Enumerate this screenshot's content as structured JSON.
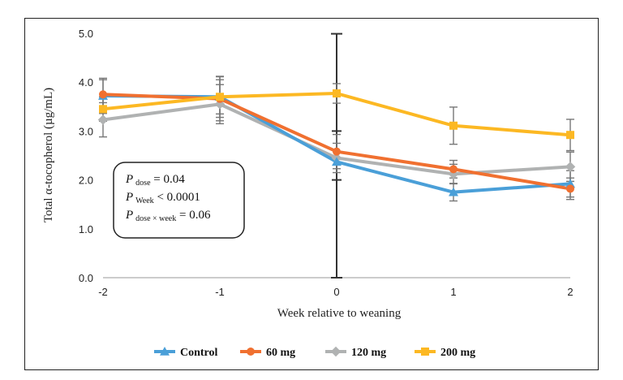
{
  "chart_data": {
    "type": "line",
    "xlabel": "Week relative to weaning",
    "ylabel": "Total α-tocopherol (µg/mL)",
    "x": [
      -2,
      -1,
      0,
      1,
      2
    ],
    "x_ticks": [
      "-2",
      "-1",
      "0",
      "1",
      "2"
    ],
    "ylim": [
      0,
      5
    ],
    "y_ticks": [
      "0.0",
      "1.0",
      "2.0",
      "3.0",
      "4.0",
      "5.0"
    ],
    "grid": false,
    "legend_position": "bottom",
    "series": [
      {
        "name": "Control",
        "color": "#4a9fd8",
        "marker": "triangle",
        "values": [
          3.72,
          3.7,
          2.37,
          1.75,
          1.92
        ],
        "errors": [
          0.36,
          0.42,
          2.62,
          0.18,
          0.27
        ]
      },
      {
        "name": "60 mg",
        "color": "#f07030",
        "marker": "circle",
        "values": [
          3.75,
          3.66,
          2.58,
          2.22,
          1.82
        ],
        "errors": [
          0.3,
          0.45,
          0.35,
          0.18,
          0.22
        ]
      },
      {
        "name": "120 mg",
        "color": "#b0b2b2",
        "marker": "diamond",
        "values": [
          3.23,
          3.55,
          2.45,
          2.12,
          2.27
        ],
        "errors": [
          0.35,
          0.4,
          0.3,
          0.2,
          0.3
        ]
      },
      {
        "name": "200 mg",
        "color": "#fcb823",
        "marker": "square",
        "values": [
          3.45,
          3.7,
          3.77,
          3.11,
          2.92
        ],
        "errors": [
          0.25,
          0.35,
          0.2,
          0.38,
          0.32
        ]
      }
    ],
    "annotation": {
      "lines": [
        {
          "p": "P",
          "sub": "dose",
          "rest": " = 0.04"
        },
        {
          "p": "P",
          "sub": "Week",
          "rest": " < 0.0001"
        },
        {
          "p": "P",
          "sub": "dose × week",
          "rest": " = 0.06"
        }
      ]
    }
  }
}
